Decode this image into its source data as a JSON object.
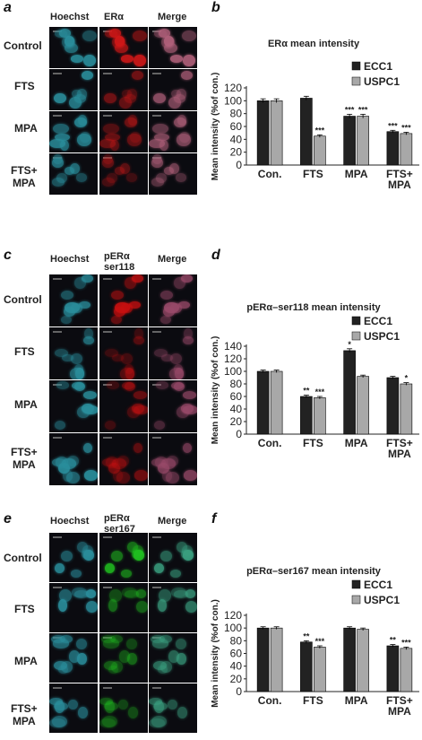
{
  "panels": [
    {
      "micro_letter": "a",
      "chart_letter": "b",
      "columns": [
        "Hoechst",
        "ERα",
        "Merge"
      ],
      "rows": [
        "Control",
        "FTS",
        "MPA",
        "FTS+\nMPA"
      ],
      "stain_color": "#d01818",
      "merge_color": "#b0607a"
    },
    {
      "micro_letter": "c",
      "chart_letter": "d",
      "columns": [
        "Hoechst",
        "pERα\nser118",
        "Merge"
      ],
      "rows": [
        "Control",
        "FTS",
        "MPA",
        "FTS+\nMPA"
      ],
      "stain_color": "#c81010",
      "merge_color": "#9a4a6a"
    },
    {
      "micro_letter": "e",
      "chart_letter": "f",
      "columns": [
        "Hoechst",
        "pERα\nser167",
        "Merge"
      ],
      "rows": [
        "Control",
        "FTS",
        "MPA",
        "FTS+\nMPA"
      ],
      "stain_color": "#20c020",
      "merge_color": "#3aa080"
    }
  ],
  "colors": {
    "hoechst": "#2a8e9c",
    "ecc1": "#222222",
    "uspc1": "#a8a8a8"
  },
  "chart_data": [
    {
      "type": "bar",
      "title": "ERα mean intensity",
      "ylabel": "Mean intensity (%of con.)",
      "categories": [
        "Con.",
        "FTS",
        "MPA",
        "FTS+\nMPA"
      ],
      "series": [
        {
          "name": "ECC1",
          "values": [
            100,
            104,
            76,
            52
          ],
          "errors": [
            3,
            3,
            3,
            2
          ],
          "marks": [
            "",
            "",
            "***",
            "***"
          ]
        },
        {
          "name": "USPC1",
          "values": [
            100,
            45,
            76,
            49
          ],
          "errors": [
            3,
            2,
            3,
            2
          ],
          "marks": [
            "",
            "***",
            "***",
            "***"
          ]
        }
      ],
      "ylim": [
        0,
        120
      ],
      "yticks": [
        0,
        20,
        40,
        60,
        80,
        100,
        120
      ],
      "legend": "top-right"
    },
    {
      "type": "bar",
      "title": "pERα–ser118 mean intensity",
      "ylabel": "Mean intensity (%of con.)",
      "categories": [
        "Con.",
        "FTS",
        "MPA",
        "FTS+\nMPA"
      ],
      "series": [
        {
          "name": "ECC1",
          "values": [
            100,
            60,
            133,
            90
          ],
          "errors": [
            2,
            2,
            3,
            2
          ],
          "marks": [
            "",
            "**",
            "*",
            ""
          ]
        },
        {
          "name": "USPC1",
          "values": [
            100,
            58,
            92,
            80
          ],
          "errors": [
            2,
            2,
            2,
            2
          ],
          "marks": [
            "",
            "***",
            "",
            "*"
          ]
        }
      ],
      "ylim": [
        0,
        140
      ],
      "yticks": [
        0,
        20,
        40,
        60,
        80,
        100,
        120,
        140
      ],
      "legend": "top-right"
    },
    {
      "type": "bar",
      "title": "pERα–ser167 mean intensity",
      "ylabel": "Mean intensity (%of con.)",
      "categories": [
        "Con.",
        "FTS",
        "MPA",
        "FTS+\nMPA"
      ],
      "series": [
        {
          "name": "ECC1",
          "values": [
            100,
            78,
            100,
            72
          ],
          "errors": [
            2,
            2,
            2,
            2
          ],
          "marks": [
            "",
            "**",
            "",
            "**"
          ]
        },
        {
          "name": "USPC1",
          "values": [
            100,
            70,
            98,
            68
          ],
          "errors": [
            2,
            2,
            2,
            2
          ],
          "marks": [
            "",
            "***",
            "",
            "***"
          ]
        }
      ],
      "ylim": [
        0,
        120
      ],
      "yticks": [
        0,
        20,
        40,
        60,
        80,
        100,
        120
      ],
      "legend": "top-right"
    }
  ]
}
